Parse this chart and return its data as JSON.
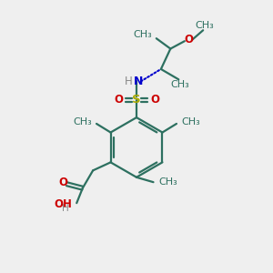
{
  "bg_color": "#efefef",
  "bond_color": "#2d7060",
  "o_color": "#cc0000",
  "n_color": "#0000cc",
  "s_color": "#aaaa00",
  "lw": 1.6,
  "fs": 8.5,
  "xlim": [
    0,
    10
  ],
  "ylim": [
    0,
    10
  ]
}
